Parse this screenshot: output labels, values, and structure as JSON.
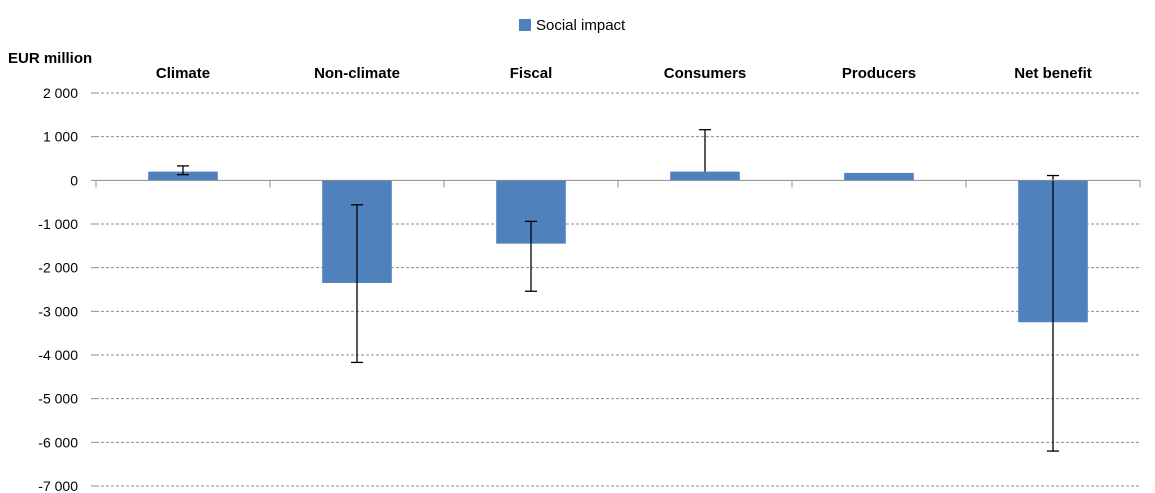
{
  "chart_data": {
    "type": "bar",
    "ylabel": "EUR million",
    "categories": [
      "Climate",
      "Non-climate",
      "Fiscal",
      "Consumers",
      "Producers",
      "Net benefit"
    ],
    "series": [
      {
        "name": "Social impact",
        "color": "#4f81bd",
        "values": [
          200,
          -2350,
          -1450,
          200,
          170,
          -3250
        ],
        "error_low": [
          130,
          -4170,
          -2540,
          200,
          170,
          -6200
        ],
        "error_high": [
          330,
          -560,
          -940,
          1160,
          170,
          110
        ]
      }
    ],
    "ylim": [
      -7000,
      2000
    ],
    "yticks": [
      2000,
      1000,
      0,
      -1000,
      -2000,
      -3000,
      -4000,
      -5000,
      -6000,
      -7000
    ],
    "ytick_labels": [
      "2 000",
      "1 000",
      "0",
      "-1 000",
      "-2 000",
      "-3 000",
      "-4 000",
      "-5 000",
      "-6 000",
      "-7 000"
    ],
    "grid": true,
    "category_labels_position": "top",
    "legend_position": "top"
  }
}
